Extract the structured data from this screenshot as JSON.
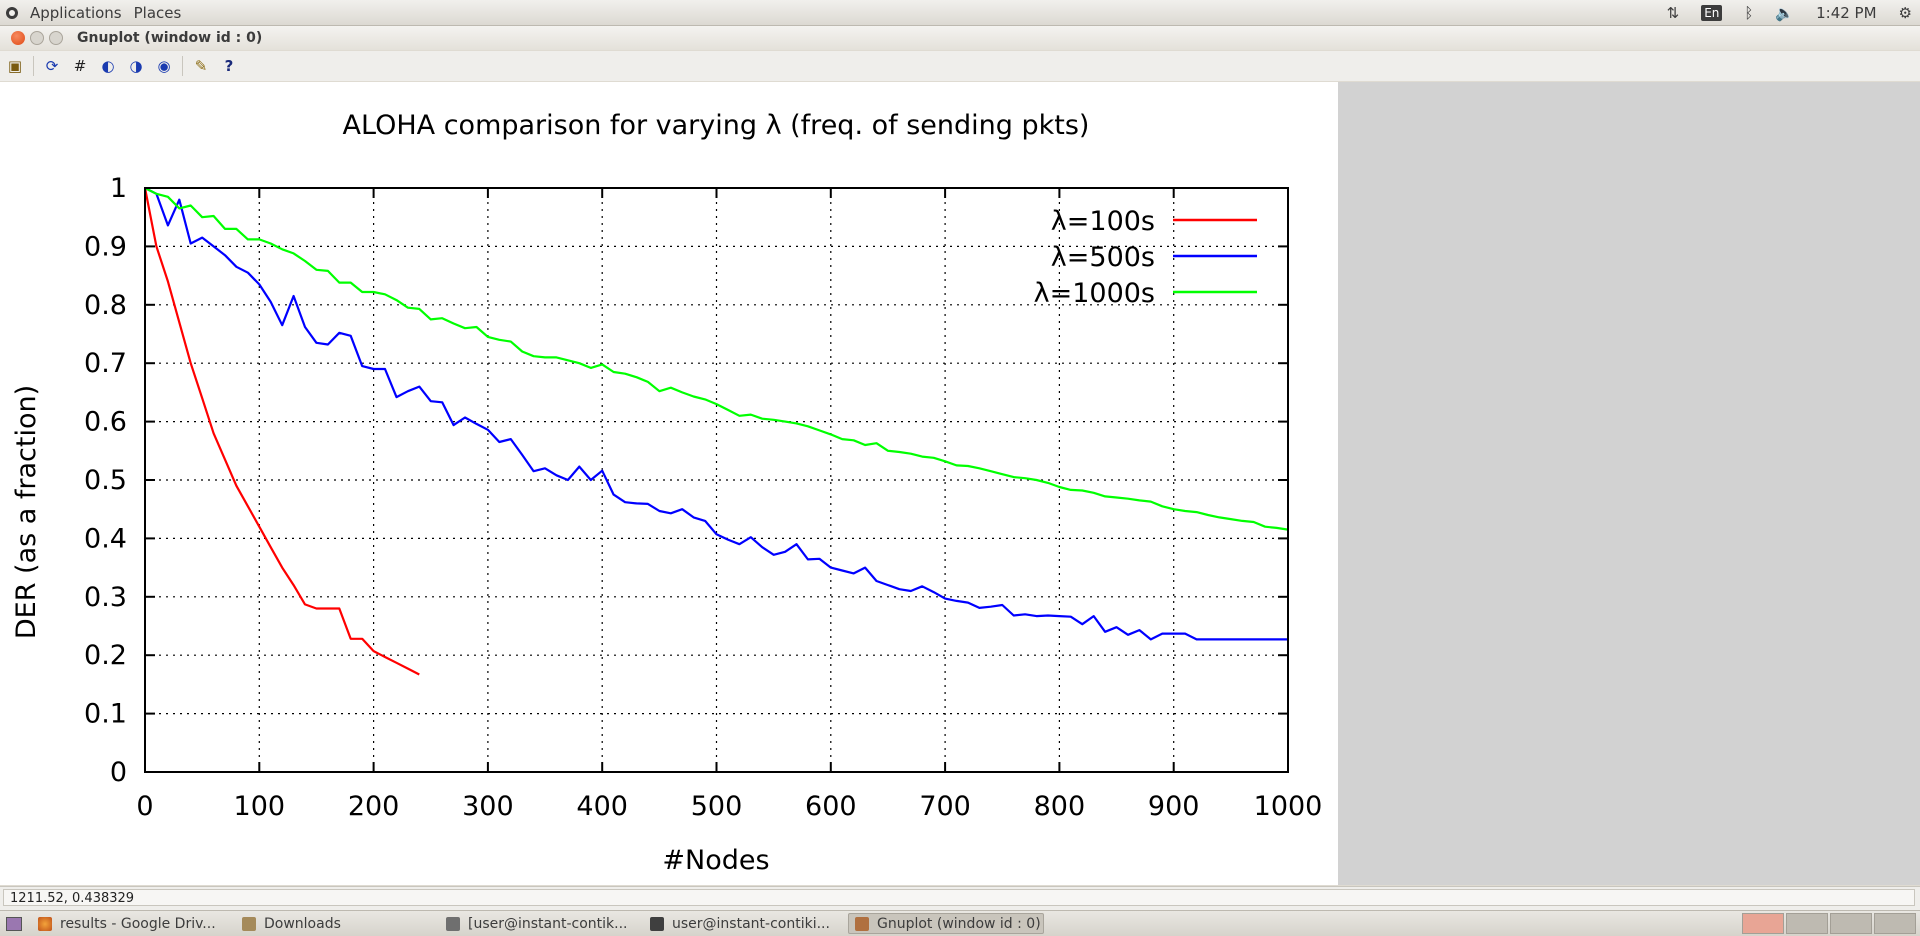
{
  "top_panel": {
    "menu": [
      "Applications",
      "Places"
    ],
    "tray": {
      "network_icon": "network-updown-icon",
      "keyboard": "En",
      "bluetooth_icon": "bluetooth-icon",
      "volume_icon": "volume-muted-icon",
      "clock": "1:42 PM",
      "settings_icon": "gear-icon"
    }
  },
  "window": {
    "title": "Gnuplot (window id : 0)"
  },
  "toolbar": {
    "buttons": [
      "clipboard-icon",
      "replot-icon",
      "grid-icon",
      "zoom-previous-icon",
      "zoom-next-icon",
      "unzoom-icon",
      "options-icon",
      "help-icon"
    ]
  },
  "status": {
    "coordinates": "1211.52, 0.438329"
  },
  "taskbar": {
    "tasks": [
      {
        "label": "results - Google Driv...",
        "icon": "firefox-icon"
      },
      {
        "label": "Downloads",
        "icon": "folder-icon"
      },
      {
        "label": "[user@instant-contik...",
        "icon": "terminal-icon"
      },
      {
        "label": "user@instant-contiki...",
        "icon": "terminal-icon"
      },
      {
        "label": "Gnuplot (window id : 0)",
        "icon": "gnuplot-icon",
        "active": true
      }
    ]
  },
  "chart_data": {
    "type": "line",
    "title": "ALOHA comparison for varying λ (freq. of sending pkts)",
    "xlabel": "#Nodes",
    "ylabel": "DER (as a fraction)",
    "xlim": [
      0,
      1000
    ],
    "ylim": [
      0,
      1
    ],
    "xticks": [
      0,
      100,
      200,
      300,
      400,
      500,
      600,
      700,
      800,
      900,
      1000
    ],
    "yticks": [
      0,
      0.1,
      0.2,
      0.3,
      0.4,
      0.5,
      0.6,
      0.7,
      0.8,
      0.9,
      1
    ],
    "grid": true,
    "legend_position": "top-right",
    "series": [
      {
        "name": "λ=100s",
        "color": "#ff0000",
        "x": [
          0,
          10,
          20,
          30,
          40,
          50,
          60,
          70,
          80,
          90,
          100,
          110,
          120,
          130,
          140,
          150,
          160,
          170,
          180,
          190,
          200,
          210,
          220,
          230,
          240
        ],
        "y": [
          1,
          0.9,
          0.84,
          0.77,
          0.7,
          0.64,
          0.58,
          0.535,
          0.49,
          0.455,
          0.42,
          0.385,
          0.35,
          0.32,
          0.287,
          0.28,
          0.28,
          0.28,
          0.228,
          0.228,
          0.207,
          0.197,
          0.187,
          0.177,
          0.167
        ]
      },
      {
        "name": "λ=500s",
        "color": "#0000ff",
        "x": [
          0,
          10,
          20,
          30,
          40,
          50,
          60,
          70,
          80,
          90,
          100,
          110,
          120,
          130,
          140,
          150,
          160,
          170,
          180,
          190,
          200,
          210,
          220,
          230,
          240,
          250,
          260,
          270,
          280,
          290,
          300,
          310,
          320,
          330,
          340,
          350,
          360,
          370,
          380,
          390,
          400,
          410,
          420,
          430,
          440,
          450,
          460,
          470,
          480,
          490,
          500,
          510,
          520,
          530,
          540,
          550,
          560,
          570,
          580,
          590,
          600,
          610,
          620,
          630,
          640,
          650,
          660,
          670,
          680,
          690,
          700,
          710,
          720,
          730,
          740,
          750,
          760,
          770,
          780,
          790,
          800,
          810,
          820,
          830,
          840,
          850,
          860,
          870,
          880,
          890,
          900,
          910,
          920,
          930,
          940,
          950,
          960,
          970,
          980,
          990,
          1000
        ],
        "y": [
          1,
          0.99,
          0.936,
          0.98,
          0.905,
          0.915,
          0.9,
          0.885,
          0.865,
          0.855,
          0.835,
          0.805,
          0.765,
          0.815,
          0.762,
          0.735,
          0.732,
          0.752,
          0.747,
          0.695,
          0.69,
          0.69,
          0.642,
          0.652,
          0.66,
          0.635,
          0.633,
          0.594,
          0.607,
          0.596,
          0.586,
          0.565,
          0.57,
          0.543,
          0.515,
          0.52,
          0.508,
          0.5,
          0.523,
          0.5,
          0.516,
          0.475,
          0.462,
          0.46,
          0.459,
          0.447,
          0.443,
          0.45,
          0.436,
          0.43,
          0.407,
          0.398,
          0.39,
          0.402,
          0.385,
          0.372,
          0.377,
          0.39,
          0.364,
          0.365,
          0.35,
          0.345,
          0.34,
          0.35,
          0.327,
          0.32,
          0.313,
          0.31,
          0.318,
          0.308,
          0.297,
          0.293,
          0.29,
          0.281,
          0.283,
          0.286,
          0.268,
          0.27,
          0.267,
          0.268,
          0.267,
          0.266,
          0.253,
          0.267,
          0.24,
          0.248,
          0.235,
          0.243,
          0.227,
          0.237,
          0.237,
          0.237,
          0.227,
          0.227,
          0.227,
          0.227,
          0.227,
          0.227,
          0.227,
          0.227,
          0.227
        ]
      },
      {
        "name": "λ=1000s",
        "color": "#00ff00",
        "x": [
          0,
          10,
          20,
          30,
          40,
          50,
          60,
          70,
          80,
          90,
          100,
          110,
          120,
          130,
          140,
          150,
          160,
          170,
          180,
          190,
          200,
          210,
          220,
          230,
          240,
          250,
          260,
          270,
          280,
          290,
          300,
          310,
          320,
          330,
          340,
          350,
          360,
          370,
          380,
          390,
          400,
          410,
          420,
          430,
          440,
          450,
          460,
          470,
          480,
          490,
          500,
          510,
          520,
          530,
          540,
          550,
          560,
          570,
          580,
          590,
          600,
          610,
          620,
          630,
          640,
          650,
          660,
          670,
          680,
          690,
          700,
          710,
          720,
          730,
          740,
          750,
          760,
          770,
          780,
          790,
          800,
          810,
          820,
          830,
          840,
          850,
          860,
          870,
          880,
          890,
          900,
          910,
          920,
          930,
          940,
          950,
          960,
          970,
          980,
          990,
          1000
        ],
        "y": [
          1,
          0.99,
          0.985,
          0.965,
          0.97,
          0.95,
          0.952,
          0.93,
          0.93,
          0.912,
          0.912,
          0.905,
          0.895,
          0.888,
          0.875,
          0.86,
          0.858,
          0.838,
          0.838,
          0.822,
          0.822,
          0.818,
          0.808,
          0.795,
          0.793,
          0.775,
          0.777,
          0.768,
          0.76,
          0.762,
          0.745,
          0.74,
          0.737,
          0.72,
          0.712,
          0.71,
          0.71,
          0.705,
          0.7,
          0.692,
          0.698,
          0.685,
          0.682,
          0.676,
          0.668,
          0.652,
          0.658,
          0.65,
          0.643,
          0.638,
          0.63,
          0.62,
          0.61,
          0.612,
          0.605,
          0.603,
          0.6,
          0.597,
          0.592,
          0.585,
          0.578,
          0.57,
          0.568,
          0.56,
          0.563,
          0.55,
          0.548,
          0.545,
          0.54,
          0.538,
          0.532,
          0.525,
          0.524,
          0.52,
          0.515,
          0.51,
          0.505,
          0.503,
          0.5,
          0.495,
          0.488,
          0.483,
          0.482,
          0.478,
          0.472,
          0.47,
          0.468,
          0.465,
          0.463,
          0.455,
          0.45,
          0.447,
          0.445,
          0.44,
          0.436,
          0.433,
          0.43,
          0.428,
          0.42,
          0.418,
          0.415
        ]
      }
    ]
  }
}
